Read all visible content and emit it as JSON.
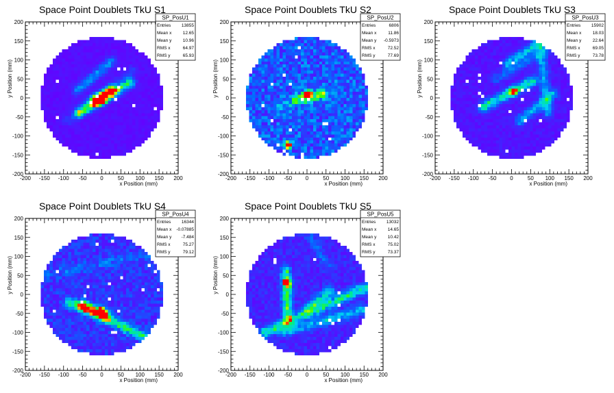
{
  "charts": [
    {
      "title": "Space Point Doublets TkU S1",
      "stats": {
        "name": "SP_PosU1",
        "rows": [
          {
            "label": "Entries",
            "value": "13855"
          },
          {
            "label": "Mean x",
            "value": "12.65"
          },
          {
            "label": "Mean y",
            "value": "10.96"
          },
          {
            "label": "RMS x",
            "value": "64.97"
          },
          {
            "label": "RMS y",
            "value": "65.93"
          }
        ]
      }
    },
    {
      "title": "Space Point Doublets TkU S2",
      "stats": {
        "name": "SP_PosU2",
        "rows": [
          {
            "label": "Entries",
            "value": "6806"
          },
          {
            "label": "Mean x",
            "value": "11.86"
          },
          {
            "label": "Mean y",
            "value": "-0.5973"
          },
          {
            "label": "RMS x",
            "value": "72.52"
          },
          {
            "label": "RMS y",
            "value": "77.69"
          }
        ]
      }
    },
    {
      "title": "Space Point Doublets TkU S3",
      "stats": {
        "name": "SP_PosU3",
        "rows": [
          {
            "label": "Entries",
            "value": "15902"
          },
          {
            "label": "Mean x",
            "value": "18.03"
          },
          {
            "label": "Mean y",
            "value": "22.64"
          },
          {
            "label": "RMS x",
            "value": "69.05"
          },
          {
            "label": "RMS y",
            "value": "73.78"
          }
        ]
      }
    },
    {
      "title": "Space Point Doublets TkU S4",
      "stats": {
        "name": "SP_PosU4",
        "rows": [
          {
            "label": "Entries",
            "value": "16344"
          },
          {
            "label": "Mean x",
            "value": "-0.07885"
          },
          {
            "label": "Mean y",
            "value": "-7.484"
          },
          {
            "label": "RMS x",
            "value": "75.27"
          },
          {
            "label": "RMS y",
            "value": "79.12"
          }
        ]
      }
    },
    {
      "title": "Space Point Doublets TkU S5",
      "stats": {
        "name": "SP_PosU5",
        "rows": [
          {
            "label": "Entries",
            "value": "13032"
          },
          {
            "label": "Mean x",
            "value": "14.65"
          },
          {
            "label": "Mean y",
            "value": "10.42"
          },
          {
            "label": "RMS x",
            "value": "75.02"
          },
          {
            "label": "RMS y",
            "value": "73.37"
          }
        ]
      }
    }
  ],
  "chart_data": [
    {
      "type": "heatmap",
      "title": "Space Point Doublets TkU S1",
      "xlabel": "x Position (mm)",
      "ylabel": "y Position (mm)",
      "xlim": [
        -200,
        200
      ],
      "ylim": [
        -200,
        200
      ],
      "xticks": [
        -200,
        -150,
        -100,
        -50,
        0,
        50,
        100,
        150,
        200
      ],
      "yticks": [
        -200,
        -150,
        -100,
        -50,
        0,
        50,
        100,
        150,
        200
      ],
      "detector_radius": 160,
      "bins_per_axis": 50,
      "features": [
        {
          "kind": "line",
          "from": [
            -60,
            -40
          ],
          "to": [
            75,
            40
          ],
          "intensity": 0.55
        },
        {
          "kind": "line",
          "from": [
            -20,
            -8
          ],
          "to": [
            25,
            18
          ],
          "intensity": 0.9
        },
        {
          "kind": "line",
          "from": [
            -65,
            20
          ],
          "to": [
            25,
            95
          ],
          "intensity": 0.28
        },
        {
          "kind": "line",
          "from": [
            -90,
            -60
          ],
          "to": [
            80,
            70
          ],
          "intensity": 0.12
        },
        {
          "kind": "spot",
          "at": [
            0,
            -8
          ],
          "intensity": 1.0
        }
      ],
      "background": 0.04
    },
    {
      "type": "heatmap",
      "title": "Space Point Doublets TkU S2",
      "xlabel": "x Position (mm)",
      "ylabel": "y Position (mm)",
      "xlim": [
        -200,
        200
      ],
      "ylim": [
        -200,
        200
      ],
      "xticks": [
        -200,
        -150,
        -100,
        -50,
        0,
        50,
        100,
        150,
        200
      ],
      "yticks": [
        -200,
        -150,
        -100,
        -50,
        0,
        50,
        100,
        150,
        200
      ],
      "detector_radius": 160,
      "bins_per_axis": 50,
      "features": [
        {
          "kind": "spot",
          "at": [
            0,
            8
          ],
          "intensity": 1.0
        },
        {
          "kind": "spot",
          "at": [
            -50,
            -125
          ],
          "intensity": 0.85
        },
        {
          "kind": "line",
          "from": [
            -30,
            -5
          ],
          "to": [
            40,
            10
          ],
          "intensity": 0.35
        },
        {
          "kind": "line",
          "from": [
            -80,
            -30
          ],
          "to": [
            80,
            30
          ],
          "intensity": 0.15
        }
      ],
      "background": 0.22
    },
    {
      "type": "heatmap",
      "title": "Space Point Doublets TkU S3",
      "xlabel": "x Position (mm)",
      "ylabel": "y Position (mm)",
      "xlim": [
        -200,
        200
      ],
      "ylim": [
        -200,
        200
      ],
      "xticks": [
        -200,
        -150,
        -100,
        -50,
        0,
        50,
        100,
        150,
        200
      ],
      "yticks": [
        -200,
        -150,
        -100,
        -50,
        0,
        50,
        100,
        150,
        200
      ],
      "detector_radius": 160,
      "bins_per_axis": 50,
      "features": [
        {
          "kind": "line",
          "from": [
            -75,
            -25
          ],
          "to": [
            55,
            45
          ],
          "intensity": 0.5
        },
        {
          "kind": "line",
          "from": [
            -10,
            90
          ],
          "to": [
            80,
            150
          ],
          "intensity": 0.35
        },
        {
          "kind": "line",
          "from": [
            75,
            150
          ],
          "to": [
            95,
            -40
          ],
          "intensity": 0.3
        },
        {
          "kind": "line",
          "from": [
            20,
            -60
          ],
          "to": [
            110,
            10
          ],
          "intensity": 0.3
        },
        {
          "kind": "line",
          "from": [
            -40,
            50
          ],
          "to": [
            120,
            140
          ],
          "intensity": 0.18
        },
        {
          "kind": "spot",
          "at": [
            5,
            15
          ],
          "intensity": 1.0
        }
      ],
      "background": 0.06
    },
    {
      "type": "heatmap",
      "title": "Space Point Doublets TkU S4",
      "xlabel": "x Position (mm)",
      "ylabel": "y Position (mm)",
      "xlim": [
        -200,
        200
      ],
      "ylim": [
        -200,
        200
      ],
      "xticks": [
        -200,
        -150,
        -100,
        -50,
        0,
        50,
        100,
        150,
        200
      ],
      "yticks": [
        -200,
        -150,
        -100,
        -50,
        0,
        50,
        100,
        150,
        200
      ],
      "detector_radius": 160,
      "bins_per_axis": 50,
      "features": [
        {
          "kind": "line",
          "from": [
            -85,
            -20
          ],
          "to": [
            110,
            -110
          ],
          "intensity": 0.45
        },
        {
          "kind": "line",
          "from": [
            -50,
            -30
          ],
          "to": [
            10,
            -55
          ],
          "intensity": 0.85
        },
        {
          "kind": "spot",
          "at": [
            0,
            -45
          ],
          "intensity": 1.0
        },
        {
          "kind": "line",
          "from": [
            -150,
            50
          ],
          "to": [
            140,
            110
          ],
          "intensity": 0.12
        }
      ],
      "background": 0.14
    },
    {
      "type": "heatmap",
      "title": "Space Point Doublets TkU S5",
      "xlabel": "x Position (mm)",
      "ylabel": "y Position (mm)",
      "xlim": [
        -200,
        200
      ],
      "ylim": [
        -200,
        200
      ],
      "xticks": [
        -200,
        -150,
        -100,
        -50,
        0,
        50,
        100,
        150,
        200
      ],
      "yticks": [
        -200,
        -150,
        -100,
        -50,
        0,
        50,
        100,
        150,
        200
      ],
      "detector_radius": 160,
      "bins_per_axis": 50,
      "features": [
        {
          "kind": "line",
          "from": [
            -55,
            60
          ],
          "to": [
            -50,
            -70
          ],
          "intensity": 0.55
        },
        {
          "kind": "spot",
          "at": [
            -52,
            30
          ],
          "intensity": 1.0
        },
        {
          "kind": "line",
          "from": [
            -110,
            -100
          ],
          "to": [
            160,
            20
          ],
          "intensity": 0.45
        },
        {
          "kind": "line",
          "from": [
            -60,
            -100
          ],
          "to": [
            150,
            -40
          ],
          "intensity": 0.3
        },
        {
          "kind": "line",
          "from": [
            0,
            -40
          ],
          "to": [
            60,
            10
          ],
          "intensity": 0.35
        },
        {
          "kind": "line",
          "from": [
            10,
            150
          ],
          "to": [
            60,
            70
          ],
          "intensity": 0.15
        }
      ],
      "background": 0.1
    }
  ]
}
